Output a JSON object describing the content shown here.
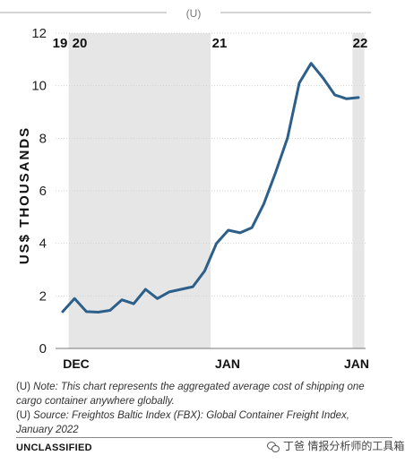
{
  "header": {
    "classification_mark": "(U)"
  },
  "chart_data": {
    "type": "line",
    "ylabel": "US$ THOUSANDS",
    "ylim": [
      0,
      12
    ],
    "yticks": [
      0,
      2,
      4,
      6,
      8,
      10,
      12
    ],
    "x_tick_labels": [
      "DEC",
      "JAN",
      "JAN"
    ],
    "year_labels": [
      "19",
      "20",
      "21",
      "22"
    ],
    "shaded_periods": [
      "2020",
      "2022"
    ],
    "line_color": "#2c5f8a",
    "shade_color": "#e6e6e6",
    "series": [
      {
        "x": [
          "2019-12",
          "2020-01",
          "2020-02",
          "2020-03",
          "2020-04",
          "2020-05",
          "2020-06",
          "2020-07",
          "2020-08",
          "2020-09",
          "2020-10",
          "2020-11",
          "2020-12",
          "2021-01",
          "2021-02",
          "2021-03",
          "2021-04",
          "2021-05",
          "2021-06",
          "2021-07",
          "2021-08",
          "2021-09",
          "2021-10",
          "2021-11",
          "2021-12",
          "2022-01"
        ],
        "values": [
          1.4,
          1.9,
          1.4,
          1.38,
          1.45,
          1.85,
          1.7,
          2.25,
          1.9,
          2.15,
          2.25,
          2.35,
          2.95,
          4.0,
          4.5,
          4.4,
          4.6,
          5.5,
          6.7,
          8.0,
          10.1,
          10.85,
          10.3,
          9.65,
          9.5,
          9.55
        ]
      }
    ]
  },
  "notes": {
    "note_prefix": "(U) ",
    "note_text": "Note: This chart represents the aggregated average cost of shipping one cargo container anywhere globally.",
    "source_prefix": "(U) ",
    "source_text": "Source: Freightos Baltic Index (FBX): Global Container Freight Index, January 2022"
  },
  "footer": {
    "classification": "UNCLASSIFIED",
    "watermark": "丁爸 情报分析师的工具箱"
  }
}
